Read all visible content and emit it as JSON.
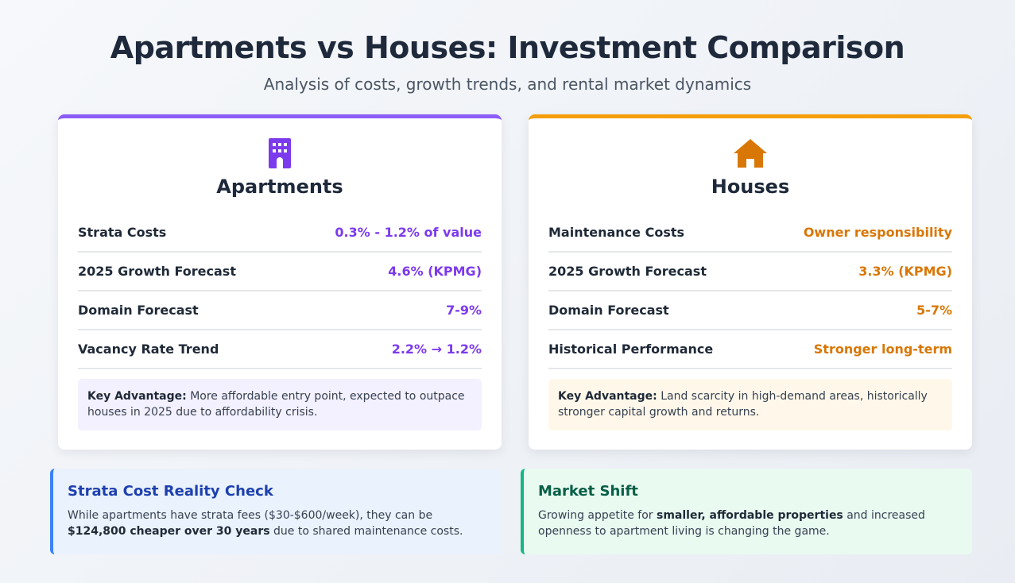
{
  "header": {
    "title": "Apartments vs Houses: Investment Comparison",
    "subtitle": "Analysis of costs, growth trends, and rental market dynamics"
  },
  "colors": {
    "apartments_accent": "#8b5cf6",
    "houses_accent": "#f59e0b",
    "strata_accent": "#3b82f6",
    "market_accent": "#10b981"
  },
  "apartments": {
    "icon": "building-icon",
    "title": "Apartments",
    "rows": [
      {
        "label": "Strata Costs",
        "value": "0.3% - 1.2% of value"
      },
      {
        "label": "2025 Growth Forecast",
        "value": "4.6% (KPMG)"
      },
      {
        "label": "Domain Forecast",
        "value": "7-9%"
      },
      {
        "label": "Vacancy Rate Trend",
        "value": "2.2% → 1.2%"
      }
    ],
    "note_label": "Key Advantage:",
    "note_text": " More affordable entry point, expected to outpace houses in 2025 due to affordability crisis."
  },
  "houses": {
    "icon": "house-icon",
    "title": "Houses",
    "rows": [
      {
        "label": "Maintenance Costs",
        "value": "Owner responsibility"
      },
      {
        "label": "2025 Growth Forecast",
        "value": "3.3% (KPMG)"
      },
      {
        "label": "Domain Forecast",
        "value": "5-7%"
      },
      {
        "label": "Historical Performance",
        "value": "Stronger long-term"
      }
    ],
    "note_label": "Key Advantage:",
    "note_text": " Land scarcity in high-demand areas, historically stronger capital growth and returns."
  },
  "strata": {
    "title": "Strata Cost Reality Check",
    "text_1": "While apartments have strata fees ($30-$600/week), they can be ",
    "text_bold": "$124,800 cheaper over 30 years",
    "text_2": " due to shared maintenance costs."
  },
  "market": {
    "title": "Market Shift",
    "text_1": "Growing appetite for ",
    "text_bold": "smaller, affordable properties",
    "text_2": " and increased openness to apartment living is changing the game."
  }
}
